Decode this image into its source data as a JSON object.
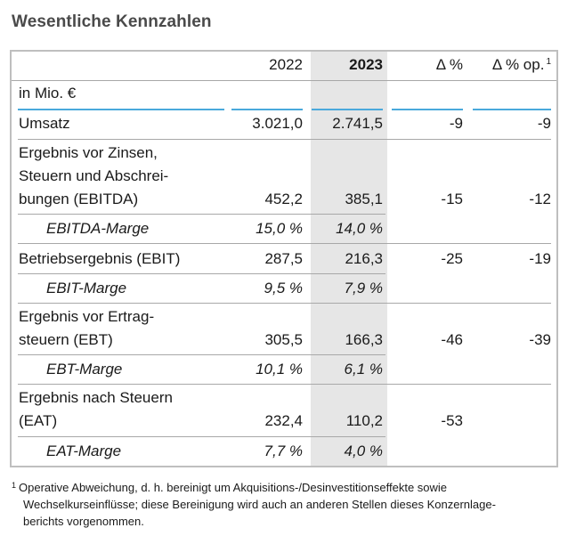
{
  "title": "Wesentliche Kennzahlen",
  "columns": {
    "y2022": "2022",
    "y2023": "2023",
    "delta": "Δ %",
    "delta_op": "Δ % op.",
    "delta_op_sup": "1"
  },
  "unit_label": "in Mio. €",
  "rows": {
    "umsatz": {
      "label": "Umsatz",
      "v2022": "3.021,0",
      "v2023": "2.741,5",
      "d": "-9",
      "dop": "-9"
    },
    "ebitda": {
      "label1": "Ergebnis vor Zinsen,",
      "label2": "Steuern und Abschrei-",
      "label3": "bungen (EBITDA)",
      "v2022": "452,2",
      "v2023": "385,1",
      "d": "-15",
      "dop": "-12"
    },
    "ebitda_marge": {
      "label": "EBITDA-Marge",
      "v2022": "15,0 %",
      "v2023": "14,0 %"
    },
    "ebit": {
      "label": "Betriebsergebnis (EBIT)",
      "v2022": "287,5",
      "v2023": "216,3",
      "d": "-25",
      "dop": "-19"
    },
    "ebit_marge": {
      "label": "EBIT-Marge",
      "v2022": "9,5 %",
      "v2023": "7,9 %"
    },
    "ebt": {
      "label1": "Ergebnis vor Ertrag-",
      "label2": "steuern (EBT)",
      "v2022": "305,5",
      "v2023": "166,3",
      "d": "-46",
      "dop": "-39"
    },
    "ebt_marge": {
      "label": "EBT-Marge",
      "v2022": "10,1 %",
      "v2023": "6,1 %"
    },
    "eat": {
      "label1": "Ergebnis nach Steuern",
      "label2": "(EAT)",
      "v2022": "232,4",
      "v2023": "110,2",
      "d": "-53",
      "dop": ""
    },
    "eat_marge": {
      "label": "EAT-Marge",
      "v2022": "7,7 %",
      "v2023": "4,0 %"
    }
  },
  "footnote": {
    "marker": "1",
    "line1": "Operative Abweichung, d. h. bereinigt um Akquisitions-/Desinvestitionseffekte sowie",
    "line2": "Wechselkurseinflüsse; diese Bereinigung wird auch an anderen Stellen dieses Konzernlage-",
    "line3": "berichts vorgenommen."
  },
  "colors": {
    "accent_rule": "#4aa9dc",
    "highlight_column": "#e6e6e6",
    "frame": "#bfbfbf"
  }
}
